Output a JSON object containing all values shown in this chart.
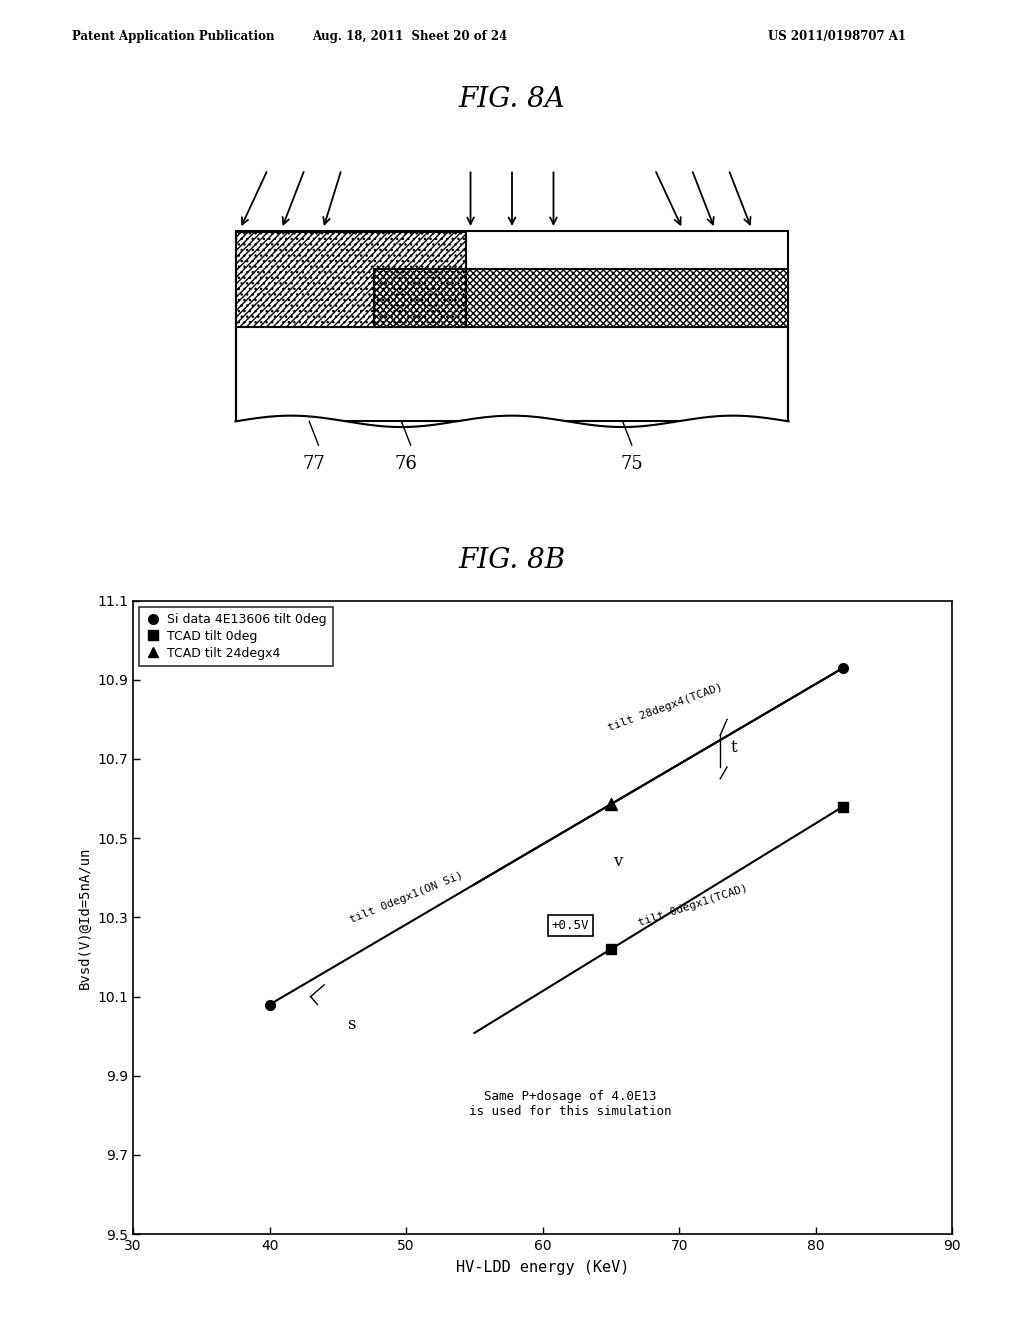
{
  "page_header_left": "Patent Application Publication",
  "page_header_mid": "Aug. 18, 2011  Sheet 20 of 24",
  "page_header_right": "US 2011/0198707 A1",
  "fig8a_title": "FIG. 8A",
  "fig8b_title": "FIG. 8B",
  "background_color": "#ffffff",
  "fig8a": {
    "label_77": "77",
    "label_76": "76",
    "label_75": "75"
  },
  "fig8b": {
    "xlabel": "HV-LDD energy (KeV)",
    "ylabel": "Bvsd(V)@Id=5nA/un",
    "xlim": [
      30,
      90
    ],
    "ylim": [
      9.5,
      11.1
    ],
    "xticks": [
      30,
      40,
      50,
      60,
      70,
      80,
      90
    ],
    "yticks": [
      9.5,
      9.7,
      9.9,
      10.1,
      10.3,
      10.5,
      10.7,
      10.9,
      11.1
    ],
    "series1_label": "Si data 4E13606 tilt 0deg",
    "series2_label": "TCAD tilt 0deg",
    "series3_label": "TCAD tilt 24degx4",
    "annotation_text": "Same P+dosage of 4.0E13\nis used for this simulation"
  }
}
